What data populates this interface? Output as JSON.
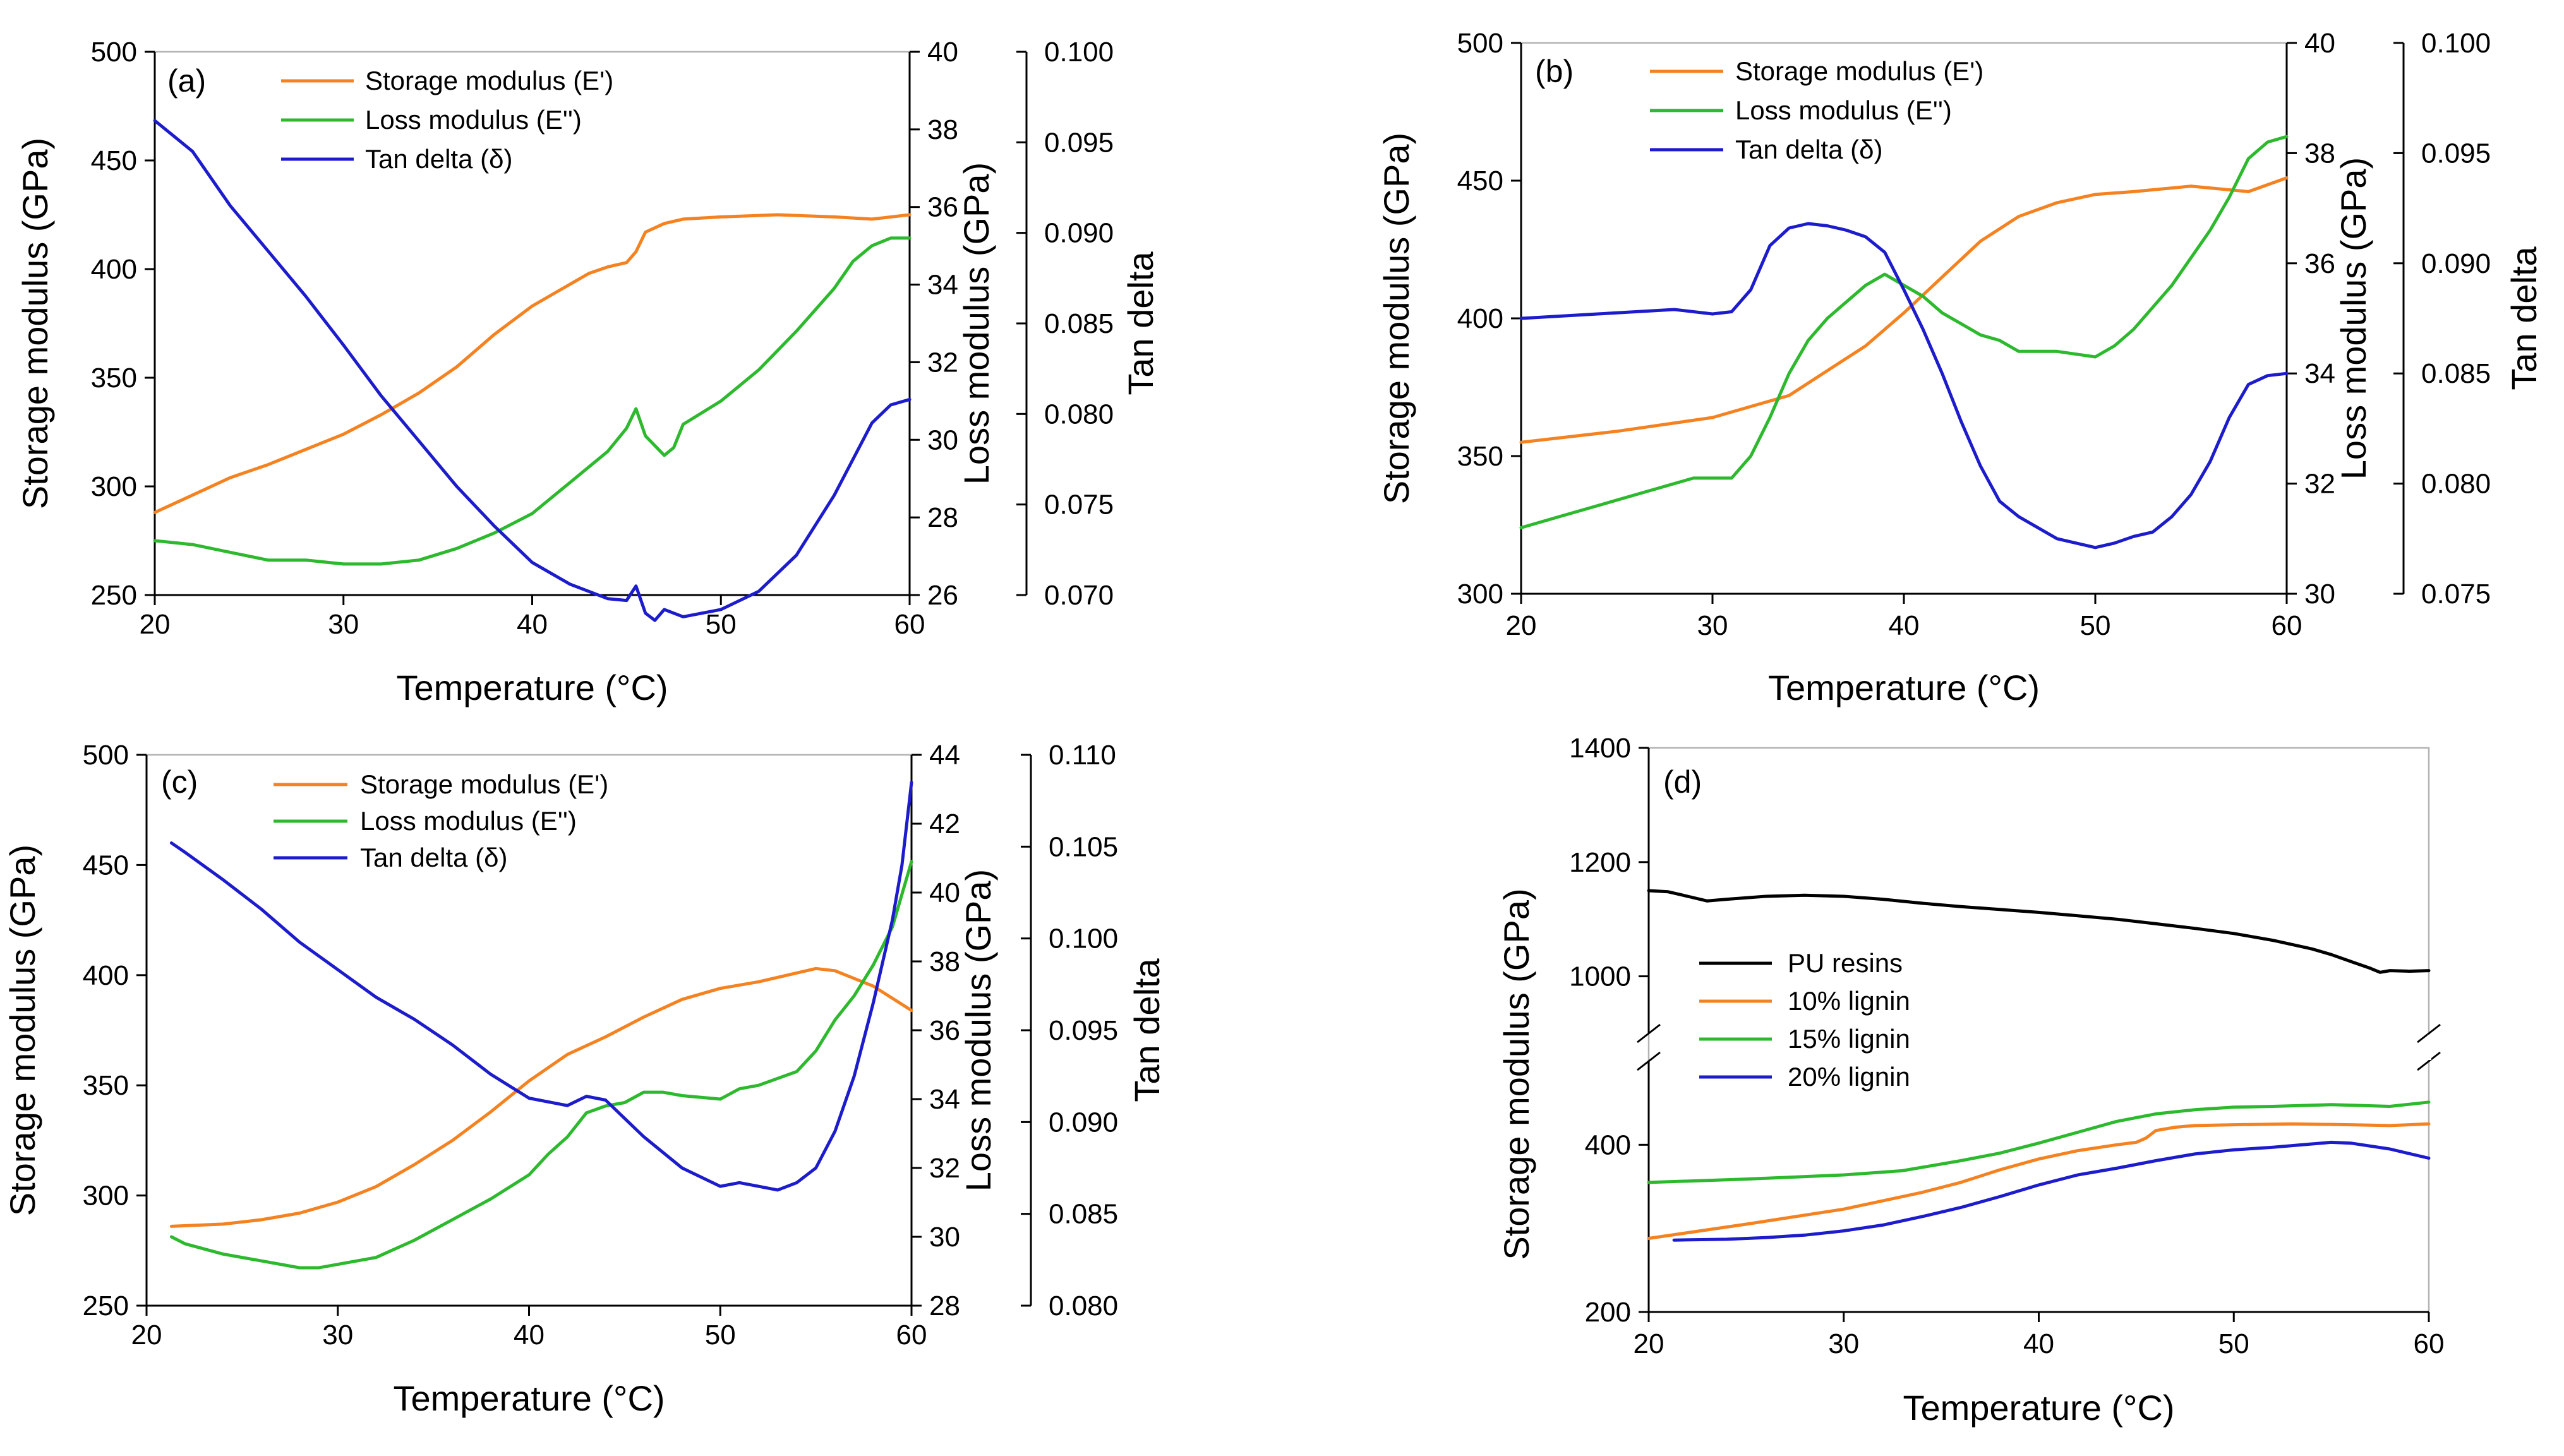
{
  "chart_data": [
    {
      "type": "line",
      "panel_label": "(a)",
      "xlabel": "Temperature (°C)",
      "xlim": [
        20,
        60
      ],
      "xticks": [
        20,
        30,
        40,
        50,
        60
      ],
      "axes": [
        {
          "id": "y1",
          "label": "Storage modulus (GPa)",
          "ylim": [
            250,
            500
          ],
          "ticks": [
            250,
            300,
            350,
            400,
            450,
            500
          ]
        },
        {
          "id": "y2",
          "label": "Loss modulus (GPa)",
          "ylim": [
            26,
            40
          ],
          "ticks": [
            26,
            28,
            30,
            32,
            34,
            36,
            38,
            40
          ]
        },
        {
          "id": "y3",
          "label": "Tan delta",
          "ylim": [
            0.07,
            0.1
          ],
          "ticks": [
            0.07,
            0.075,
            0.08,
            0.085,
            0.09,
            0.095,
            0.1
          ],
          "tick_labels": [
            "0.070",
            "0.075",
            "0.080",
            "0.085",
            "0.090",
            "0.095",
            "0.100"
          ]
        }
      ],
      "series": [
        {
          "name": "Storage modulus (E')",
          "axis": "y1",
          "color": "#f58220",
          "x": [
            20,
            22,
            24,
            26,
            28,
            30,
            32,
            34,
            36,
            38,
            40,
            42,
            43,
            44,
            45,
            45.5,
            46,
            47,
            48,
            50,
            53,
            56,
            58,
            60
          ],
          "y": [
            288,
            296,
            304,
            310,
            317,
            324,
            333,
            343,
            355,
            370,
            383,
            393,
            398,
            401,
            403,
            408,
            417,
            421,
            423,
            424,
            425,
            424,
            423,
            425
          ]
        },
        {
          "name": "Loss modulus (E'')",
          "axis": "y2",
          "color": "#2db92d",
          "x": [
            20,
            22,
            24,
            26,
            28,
            30,
            32,
            34,
            36,
            38,
            40,
            41,
            42,
            43,
            44,
            45,
            45.5,
            46,
            47,
            47.5,
            48,
            50,
            52,
            54,
            56,
            57,
            58,
            59,
            60
          ],
          "y": [
            27.4,
            27.3,
            27.1,
            26.9,
            26.9,
            26.8,
            26.8,
            26.9,
            27.2,
            27.6,
            28.1,
            28.5,
            28.9,
            29.3,
            29.7,
            30.3,
            30.8,
            30.1,
            29.6,
            29.8,
            30.4,
            31.0,
            31.8,
            32.8,
            33.9,
            34.6,
            35.0,
            35.2,
            35.2
          ]
        },
        {
          "name": "Tan delta (δ)",
          "axis": "y3",
          "color": "#1c1ccc",
          "x": [
            20,
            22,
            24,
            26,
            28,
            30,
            32,
            34,
            36,
            38,
            40,
            42,
            44,
            45,
            45.5,
            46,
            46.5,
            47,
            48,
            50,
            52,
            54,
            56,
            57,
            58,
            59,
            60
          ],
          "y": [
            0.0962,
            0.0945,
            0.0915,
            0.089,
            0.0865,
            0.0838,
            0.081,
            0.0785,
            0.076,
            0.0738,
            0.0718,
            0.0706,
            0.0698,
            0.0697,
            0.0705,
            0.069,
            0.0686,
            0.0692,
            0.0688,
            0.0692,
            0.0702,
            0.0722,
            0.0755,
            0.0775,
            0.0795,
            0.0805,
            0.0808
          ]
        }
      ]
    },
    {
      "type": "line",
      "panel_label": "(b)",
      "xlabel": "Temperature (°C)",
      "xlim": [
        20,
        60
      ],
      "xticks": [
        20,
        30,
        40,
        50,
        60
      ],
      "axes": [
        {
          "id": "y1",
          "label": "Storage modulus (GPa)",
          "ylim": [
            300,
            500
          ],
          "ticks": [
            300,
            350,
            400,
            450,
            500
          ]
        },
        {
          "id": "y2",
          "label": "Loss modulus (GPa)",
          "ylim": [
            30,
            40
          ],
          "ticks": [
            30,
            32,
            34,
            36,
            38,
            40
          ]
        },
        {
          "id": "y3",
          "label": "Tan delta",
          "ylim": [
            0.075,
            0.1
          ],
          "ticks": [
            0.075,
            0.08,
            0.085,
            0.09,
            0.095,
            0.1
          ],
          "tick_labels": [
            "0.075",
            "0.080",
            "0.085",
            "0.090",
            "0.095",
            "0.100"
          ]
        }
      ],
      "series": [
        {
          "name": "Storage modulus (E')",
          "axis": "y1",
          "color": "#f58220",
          "x": [
            20,
            25,
            30,
            34,
            36,
            38,
            40,
            42,
            44,
            46,
            48,
            50,
            52,
            55,
            58,
            60
          ],
          "y": [
            355,
            359,
            364,
            372,
            381,
            390,
            402,
            415,
            428,
            437,
            442,
            445,
            446,
            448,
            446,
            451
          ]
        },
        {
          "name": "Loss modulus (E'')",
          "axis": "y2",
          "color": "#2db92d",
          "x": [
            20,
            22,
            24,
            26,
            28,
            29,
            31,
            32,
            33,
            34,
            35,
            36,
            37,
            38,
            39,
            40,
            41,
            42,
            43,
            44,
            45,
            46,
            48,
            50,
            51,
            52,
            54,
            56,
            57,
            58,
            59,
            60
          ],
          "y": [
            31.2,
            31.4,
            31.6,
            31.8,
            32.0,
            32.1,
            32.1,
            32.5,
            33.2,
            34.0,
            34.6,
            35.0,
            35.3,
            35.6,
            35.8,
            35.6,
            35.4,
            35.1,
            34.9,
            34.7,
            34.6,
            34.4,
            34.4,
            34.3,
            34.5,
            34.8,
            35.6,
            36.6,
            37.2,
            37.9,
            38.2,
            38.3
          ]
        },
        {
          "name": "Tan delta (δ)",
          "axis": "y3",
          "color": "#1c1ccc",
          "x": [
            20,
            24,
            28,
            30,
            31,
            32,
            33,
            34,
            35,
            36,
            37,
            38,
            39,
            40,
            41,
            42,
            43,
            44,
            45,
            46,
            48,
            50,
            51,
            52,
            53,
            54,
            55,
            56,
            57,
            58,
            59,
            60
          ],
          "y": [
            0.0875,
            0.0877,
            0.0879,
            0.0877,
            0.0878,
            0.0888,
            0.0908,
            0.0916,
            0.0918,
            0.0917,
            0.0915,
            0.0912,
            0.0905,
            0.0888,
            0.087,
            0.085,
            0.0828,
            0.0808,
            0.0792,
            0.0785,
            0.0775,
            0.0771,
            0.0773,
            0.0776,
            0.0778,
            0.0785,
            0.0795,
            0.081,
            0.083,
            0.0845,
            0.0849,
            0.085
          ]
        }
      ]
    },
    {
      "type": "line",
      "panel_label": "(c)",
      "xlabel": "Temperature (°C)",
      "xlim": [
        20,
        60
      ],
      "xticks": [
        20,
        30,
        40,
        50,
        60
      ],
      "axes": [
        {
          "id": "y1",
          "label": "Storage modulus (GPa)",
          "ylim": [
            250,
            500
          ],
          "ticks": [
            250,
            300,
            350,
            400,
            450,
            500
          ]
        },
        {
          "id": "y2",
          "label": "Loss modulus (GPa)",
          "ylim": [
            28,
            44
          ],
          "ticks": [
            28,
            30,
            32,
            34,
            36,
            38,
            40,
            42,
            44
          ]
        },
        {
          "id": "y3",
          "label": "Tan delta",
          "ylim": [
            0.08,
            0.11
          ],
          "ticks": [
            0.08,
            0.085,
            0.09,
            0.095,
            0.1,
            0.105,
            0.11
          ],
          "tick_labels": [
            "0.080",
            "0.085",
            "0.090",
            "0.095",
            "0.100",
            "0.105",
            "0.110"
          ]
        }
      ],
      "series": [
        {
          "name": "Storage modulus (E')",
          "axis": "y1",
          "color": "#f58220",
          "x": [
            21.3,
            24,
            26,
            28,
            30,
            32,
            34,
            36,
            38,
            40,
            42,
            44,
            46,
            48,
            50,
            52,
            54,
            55,
            56,
            58,
            60
          ],
          "y": [
            286,
            287,
            289,
            292,
            297,
            304,
            314,
            325,
            338,
            352,
            364,
            372,
            381,
            389,
            394,
            397,
            401,
            403,
            402,
            395,
            384
          ]
        },
        {
          "name": "Loss modulus (E'')",
          "axis": "y2",
          "color": "#2db92d",
          "x": [
            21.3,
            22,
            24,
            26,
            28,
            29,
            30,
            32,
            34,
            36,
            38,
            40,
            41,
            42,
            43,
            44,
            45,
            46,
            47,
            48,
            50,
            51,
            52,
            54,
            55,
            56,
            57,
            58,
            59,
            60
          ],
          "y": [
            30.0,
            29.8,
            29.5,
            29.3,
            29.1,
            29.1,
            29.2,
            29.4,
            29.9,
            30.5,
            31.1,
            31.8,
            32.4,
            32.9,
            33.6,
            33.8,
            33.9,
            34.2,
            34.2,
            34.1,
            34.0,
            34.3,
            34.4,
            34.8,
            35.4,
            36.3,
            37.0,
            37.9,
            39.0,
            40.9
          ]
        },
        {
          "name": "Tan delta (δ)",
          "axis": "y3",
          "color": "#1c1ccc",
          "x": [
            21.3,
            22,
            24,
            26,
            28,
            30,
            32,
            34,
            36,
            38,
            40,
            42,
            43,
            44,
            46,
            48,
            50,
            51,
            52,
            53,
            54,
            55,
            56,
            57,
            58,
            59,
            59.5,
            60
          ],
          "y": [
            0.1052,
            0.1047,
            0.1032,
            0.1016,
            0.0998,
            0.0983,
            0.0968,
            0.0956,
            0.0942,
            0.0926,
            0.0913,
            0.0909,
            0.0914,
            0.0912,
            0.0892,
            0.0875,
            0.0865,
            0.0867,
            0.0865,
            0.0863,
            0.0867,
            0.0875,
            0.0895,
            0.0925,
            0.0965,
            0.101,
            0.104,
            0.1085
          ]
        }
      ]
    },
    {
      "type": "line",
      "panel_label": "(d)",
      "xlabel": "Temperature (°C)",
      "xlim": [
        20,
        60
      ],
      "xticks": [
        20,
        30,
        40,
        50,
        60
      ],
      "axes": [
        {
          "id": "y1",
          "label": "Storage modulus (GPa)",
          "broken": true,
          "segments": [
            {
              "ylim": [
                200,
                500
              ],
              "ticks": [
                200,
                400
              ]
            },
            {
              "ylim": [
                900,
                1400
              ],
              "ticks": [
                1000,
                1200,
                1400
              ]
            }
          ]
        }
      ],
      "series": [
        {
          "name": "PU resins",
          "axis": "y1",
          "color": "#000000",
          "x": [
            20,
            21,
            22,
            23,
            24,
            26,
            28,
            30,
            32,
            34,
            36,
            38,
            40,
            42,
            44,
            46,
            48,
            50,
            52,
            54,
            55,
            56,
            57,
            57.5,
            58,
            59,
            60
          ],
          "y": [
            1150,
            1148,
            1140,
            1132,
            1135,
            1140,
            1142,
            1140,
            1135,
            1128,
            1122,
            1117,
            1112,
            1106,
            1100,
            1092,
            1084,
            1075,
            1063,
            1048,
            1038,
            1026,
            1014,
            1007,
            1010,
            1009,
            1010
          ]
        },
        {
          "name": "10% lignin",
          "axis": "y1",
          "color": "#f58220",
          "x": [
            20,
            25,
            30,
            34,
            36,
            38,
            40,
            42,
            44,
            45,
            45.5,
            46,
            47,
            48,
            50,
            53,
            56,
            58,
            60
          ],
          "y": [
            288,
            305,
            323,
            343,
            355,
            370,
            383,
            393,
            400,
            403,
            408,
            417,
            421,
            423,
            424,
            425,
            424,
            423,
            425
          ]
        },
        {
          "name": "15% lignin",
          "axis": "y1",
          "color": "#2db92d",
          "x": [
            20,
            25,
            30,
            33,
            36,
            38,
            40,
            42,
            44,
            46,
            48,
            50,
            52,
            55,
            58,
            60
          ],
          "y": [
            355,
            359,
            364,
            369,
            381,
            390,
            402,
            415,
            428,
            437,
            442,
            445,
            446,
            448,
            446,
            451
          ]
        },
        {
          "name": "20% lignin",
          "axis": "y1",
          "color": "#1c1ccc",
          "x": [
            21.3,
            24,
            26,
            28,
            30,
            32,
            34,
            36,
            38,
            40,
            42,
            44,
            46,
            48,
            50,
            52,
            54,
            55,
            56,
            58,
            60
          ],
          "y": [
            286,
            287,
            289,
            292,
            297,
            304,
            314,
            325,
            338,
            352,
            364,
            372,
            381,
            389,
            394,
            397,
            401,
            403,
            402,
            395,
            384
          ]
        }
      ]
    }
  ]
}
